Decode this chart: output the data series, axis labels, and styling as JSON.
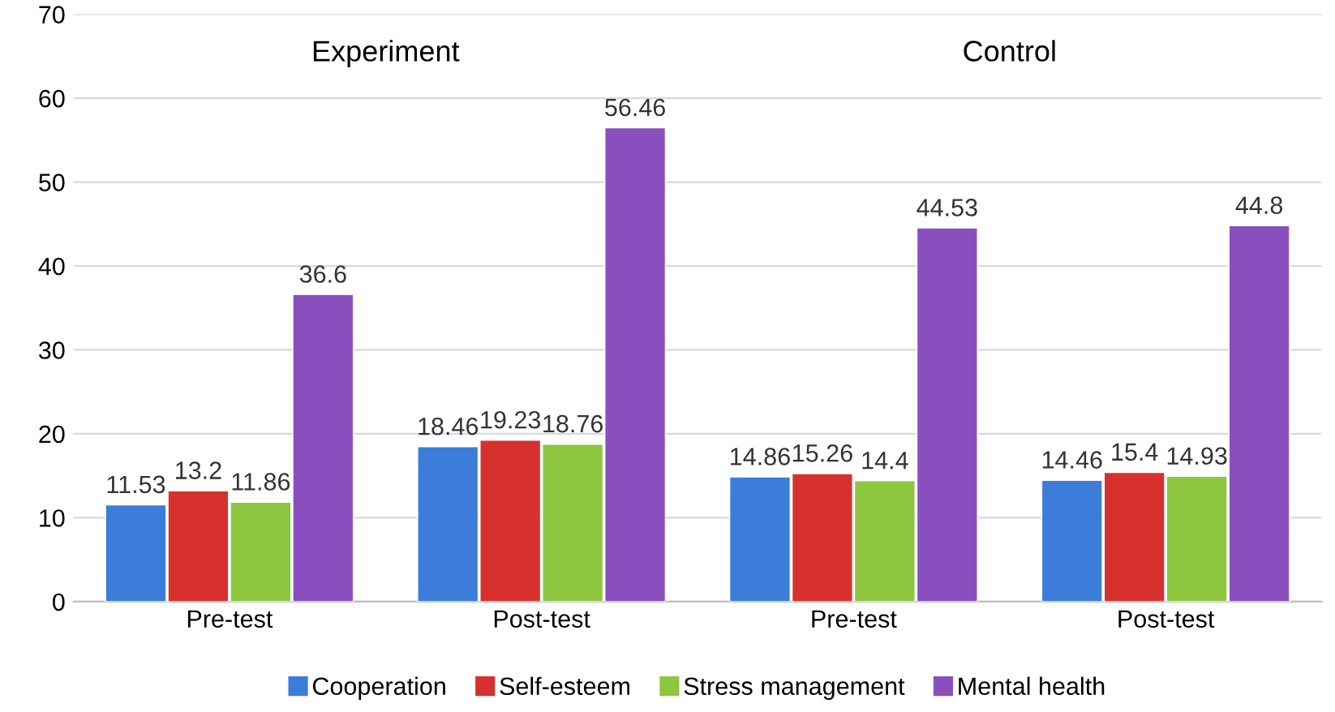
{
  "chart_data": {
    "type": "bar",
    "categories": [
      "Pre-test",
      "Post-test",
      "Pre-test",
      "Post-test"
    ],
    "series": [
      {
        "name": "Cooperation",
        "color": "#3b7dd8",
        "values": [
          11.53,
          18.46,
          14.86,
          14.46
        ]
      },
      {
        "name": "Self-esteem",
        "color": "#d7312d",
        "values": [
          13.2,
          19.23,
          15.26,
          15.4
        ]
      },
      {
        "name": "Stress management",
        "color": "#8dc63f",
        "values": [
          11.86,
          18.76,
          14.4,
          14.93
        ]
      },
      {
        "name": "Mental health",
        "color": "#8a4fbf",
        "values": [
          36.6,
          56.46,
          44.53,
          44.8
        ]
      }
    ],
    "annotations": [
      "Experiment",
      "Control"
    ],
    "ylim": [
      0,
      70
    ],
    "yticks": [
      0,
      10,
      20,
      30,
      40,
      50,
      60,
      70
    ],
    "grid": "y",
    "legend": "bottom",
    "data_labels": true
  }
}
